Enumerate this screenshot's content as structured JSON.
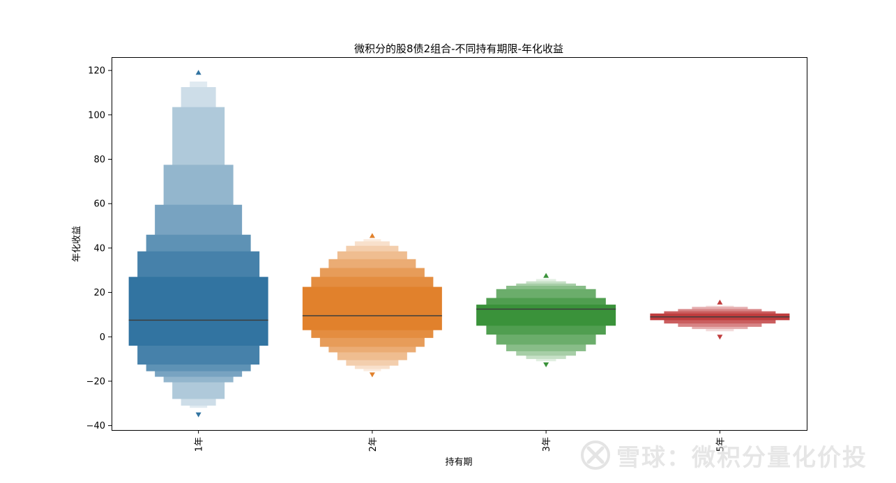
{
  "chart_data": {
    "type": "boxenplot",
    "title": "微积分的股8债2组合-不同持有期限-年化收益",
    "xlabel": "持有期",
    "ylabel": "年化收益",
    "categories": [
      "1年",
      "2年",
      "3年",
      "5年"
    ],
    "ylim": [
      -42,
      126
    ],
    "yticks": [
      -40,
      -20,
      0,
      20,
      40,
      60,
      80,
      100,
      120
    ],
    "ytick_labels": [
      "−40",
      "−20",
      "0",
      "20",
      "40",
      "60",
      "80",
      "100",
      "120"
    ],
    "grid": false,
    "series": [
      {
        "category": "1年",
        "color": "#3274a1",
        "median": 7.5,
        "boxes": [
          [
            -4,
            27
          ],
          [
            -12.5,
            38.5
          ],
          [
            -15.5,
            46
          ],
          [
            -18,
            59.5
          ],
          [
            -20.5,
            77.5
          ],
          [
            -28,
            103.5
          ],
          [
            -31,
            112.5
          ],
          [
            -32,
            115
          ]
        ],
        "outliers": [
          119,
          -35
        ]
      },
      {
        "category": "2年",
        "color": "#e1812c",
        "median": 9.5,
        "boxes": [
          [
            3,
            22.5
          ],
          [
            -0.5,
            27
          ],
          [
            -4.5,
            31
          ],
          [
            -7,
            35
          ],
          [
            -10.5,
            38.5
          ],
          [
            -13,
            41
          ],
          [
            -14.5,
            43
          ],
          [
            -15.5,
            44
          ]
        ],
        "outliers": [
          45.5,
          -17
        ]
      },
      {
        "category": "3年",
        "color": "#3a923a",
        "median": 12.5,
        "boxes": [
          [
            5,
            14.5
          ],
          [
            1,
            17.5
          ],
          [
            -3.5,
            21.5
          ],
          [
            -6.5,
            23
          ],
          [
            -8.5,
            24
          ],
          [
            -10,
            25
          ],
          [
            -11,
            26
          ]
        ],
        "outliers": [
          27.5,
          -12.5
        ]
      },
      {
        "category": "5年",
        "color": "#c03d3e",
        "median": 9,
        "boxes": [
          [
            7.5,
            10.5
          ],
          [
            6,
            11.5
          ],
          [
            4.5,
            12.5
          ],
          [
            3.5,
            13.5
          ],
          [
            2.5,
            14
          ]
        ],
        "outliers": [
          15.5,
          0
        ]
      }
    ]
  },
  "watermark": {
    "icon": "snowball-logo-icon",
    "text": "雪球：微积分量化价投"
  }
}
